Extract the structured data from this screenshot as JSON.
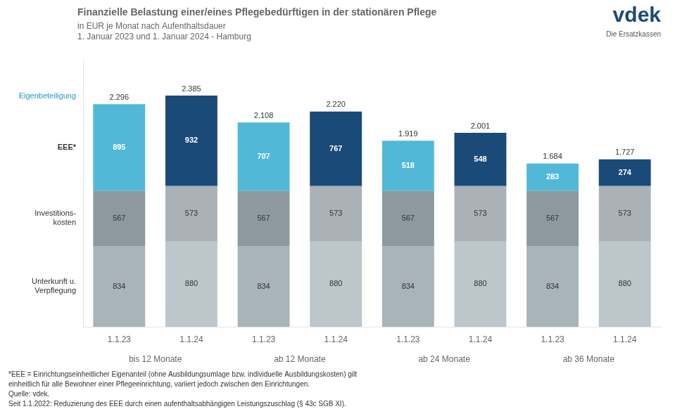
{
  "chart_data": {
    "type": "bar",
    "title": "Finanzielle Belastung einer/eines Pflegebedürftigen in der stationären Pflege",
    "subtitle": [
      "in EUR je Monat nach Aufenthaltsdauer",
      "1. Januar 2023 und 1. Januar 2024 - Hamburg"
    ],
    "categories": [
      "1.1.23",
      "1.1.24",
      "1.1.23",
      "1.1.24",
      "1.1.23",
      "1.1.24",
      "1.1.23",
      "1.1.24"
    ],
    "groups": [
      "bis 12 Monate",
      "ab 12 Monate",
      "ab 24 Monate",
      "ab 36 Monate"
    ],
    "series": [
      {
        "name": "Unterkunft u.\nVerpflegung",
        "values": [
          834,
          880,
          834,
          880,
          834,
          880,
          834,
          880
        ],
        "colors": [
          "#a8b4ba",
          "#bcc6cb",
          "#a8b4ba",
          "#bcc6cb",
          "#a8b4ba",
          "#bcc6cb",
          "#a8b4ba",
          "#bcc6cb"
        ]
      },
      {
        "name": "Investitions-\nkosten",
        "values": [
          567,
          573,
          567,
          573,
          567,
          573,
          567,
          573
        ],
        "colors": [
          "#8c9aa0",
          "#aab2b8",
          "#8c9aa0",
          "#aab2b8",
          "#8c9aa0",
          "#aab2b8",
          "#8c9aa0",
          "#aab2b8"
        ]
      },
      {
        "name": "EEE*",
        "values": [
          895,
          932,
          707,
          767,
          518,
          548,
          283,
          274
        ],
        "colors": [
          "#52b8d8",
          "#1a4a78",
          "#52b8d8",
          "#1a4a78",
          "#52b8d8",
          "#1a4a78",
          "#52b8d8",
          "#1a4a78"
        ]
      }
    ],
    "totals": {
      "values": [
        2296,
        2385,
        2108,
        2220,
        1919,
        2001,
        1684,
        1727
      ],
      "value_labels": [
        "2.296",
        "2.385",
        "2.108",
        "2.220",
        "1.919",
        "2.001",
        "1.684",
        "1.727"
      ]
    },
    "stacked": true,
    "data_labels": true,
    "ylim": [
      0,
      2750
    ],
    "grid": false,
    "tick_labels": "x",
    "annotations": [
      "Eigenbeteiligung",
      "vdek",
      "Die Ersatzkassen"
    ],
    "footnotes": [
      "*EEE = Einrichtungseinheitlicher Eigenanteil (ohne Ausbildungsumlage bzw. individuelle Ausbildungskosten) gilt",
      "einheitlich für alle Bewohner einer Pflegeeinrichtung, variiert jedoch zwischen den Einrichtungen.",
      "Quelle: vdek.",
      "Seit 1.1.2022: Reduzierung des EEE durch einen aufenthaltsabhängigen Leistungszuschlag (§ 43c SGB XI)."
    ]
  }
}
